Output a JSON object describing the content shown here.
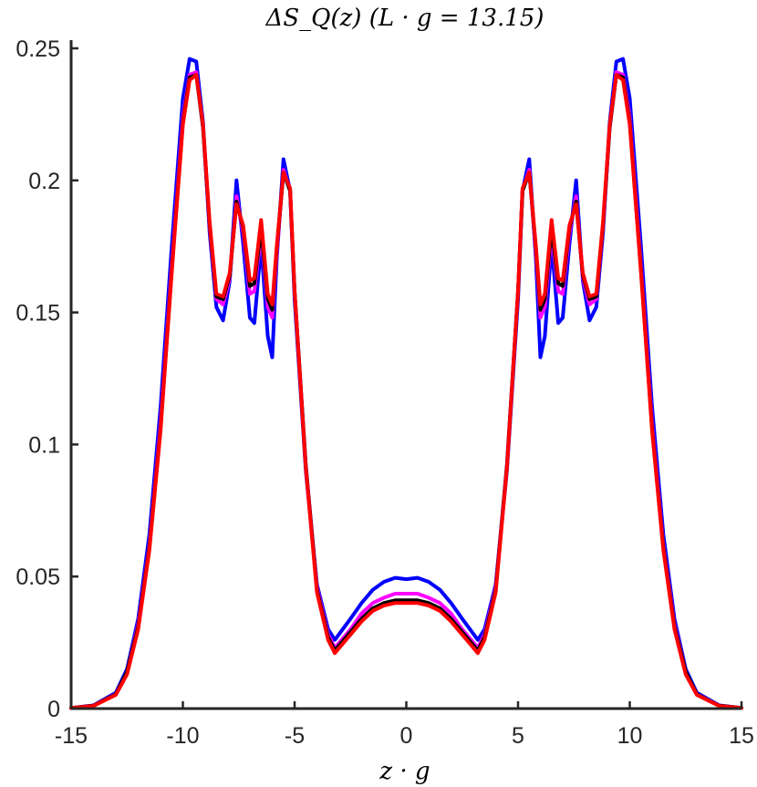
{
  "chart_data": {
    "type": "line",
    "title": "ΔS_Q(z) (L · g = 13.15)",
    "xlabel": "z · g",
    "ylabel": "",
    "xlim": [
      -15,
      15
    ],
    "ylim": [
      0,
      0.25
    ],
    "xticks": [
      -15,
      -10,
      -5,
      0,
      5,
      10,
      15
    ],
    "xtick_labels": [
      "-15",
      "-10",
      "-5",
      "0",
      "5",
      "10",
      "15"
    ],
    "yticks": [
      0,
      0.05,
      0.1,
      0.15,
      0.2,
      0.25
    ],
    "ytick_labels": [
      "0",
      "0.05",
      "0.1",
      "0.15",
      "0.2",
      "0.25"
    ],
    "grid": false,
    "legend": "none",
    "series": [
      {
        "color": "#0000ff",
        "x": [
          -15,
          -14,
          -13,
          -12.5,
          -12,
          -11.5,
          -11,
          -10.5,
          -10,
          -9.7,
          -9.4,
          -9.1,
          -8.8,
          -8.5,
          -8.2,
          -7.9,
          -7.6,
          -7.3,
          -7.0,
          -6.8,
          -6.5,
          -6.2,
          -6.0,
          -5.8,
          -5.5,
          -5.2,
          -5.0,
          -4.5,
          -4.0,
          -3.5,
          -3.2,
          -2.5,
          -2.0,
          -1.5,
          -1.0,
          -0.5,
          0,
          0.5,
          1.0,
          1.5,
          2.0,
          2.5,
          3.2,
          3.5,
          4.0,
          4.5,
          5.0,
          5.2,
          5.5,
          5.8,
          6.0,
          6.2,
          6.5,
          6.8,
          7.0,
          7.3,
          7.6,
          7.9,
          8.2,
          8.5,
          8.8,
          9.1,
          9.4,
          9.7,
          10,
          10.5,
          11,
          11.5,
          12,
          12.5,
          13,
          14,
          15
        ],
        "y": [
          0.0002,
          0.0012,
          0.006,
          0.015,
          0.034,
          0.066,
          0.114,
          0.175,
          0.231,
          0.246,
          0.245,
          0.222,
          0.18,
          0.152,
          0.147,
          0.162,
          0.2,
          0.176,
          0.148,
          0.146,
          0.176,
          0.141,
          0.133,
          0.17,
          0.208,
          0.196,
          0.155,
          0.09,
          0.047,
          0.03,
          0.026,
          0.034,
          0.04,
          0.045,
          0.048,
          0.0495,
          0.049,
          0.0495,
          0.048,
          0.045,
          0.04,
          0.034,
          0.026,
          0.03,
          0.047,
          0.09,
          0.155,
          0.196,
          0.208,
          0.17,
          0.133,
          0.141,
          0.176,
          0.146,
          0.148,
          0.176,
          0.2,
          0.162,
          0.147,
          0.152,
          0.18,
          0.222,
          0.245,
          0.246,
          0.231,
          0.175,
          0.114,
          0.066,
          0.034,
          0.015,
          0.006,
          0.0012,
          0.0002
        ]
      },
      {
        "color": "#ff00ff",
        "x": [
          -15,
          -14,
          -13,
          -12.5,
          -12,
          -11.5,
          -11,
          -10.5,
          -10,
          -9.7,
          -9.4,
          -9.1,
          -8.8,
          -8.5,
          -8.2,
          -7.9,
          -7.6,
          -7.3,
          -7.0,
          -6.8,
          -6.5,
          -6.2,
          -6.0,
          -5.8,
          -5.5,
          -5.2,
          -5.0,
          -4.5,
          -4.0,
          -3.5,
          -3.2,
          -2.5,
          -2.0,
          -1.5,
          -1.0,
          -0.5,
          0,
          0.5,
          1.0,
          1.5,
          2.0,
          2.5,
          3.2,
          3.5,
          4.0,
          4.5,
          5.0,
          5.2,
          5.5,
          5.8,
          6.0,
          6.2,
          6.5,
          6.8,
          7.0,
          7.3,
          7.6,
          7.9,
          8.2,
          8.5,
          8.8,
          9.1,
          9.4,
          9.7,
          10,
          10.5,
          11,
          11.5,
          12,
          12.5,
          13,
          14,
          15
        ],
        "y": [
          0.0002,
          0.0011,
          0.0055,
          0.014,
          0.032,
          0.062,
          0.108,
          0.168,
          0.224,
          0.24,
          0.241,
          0.22,
          0.182,
          0.155,
          0.153,
          0.163,
          0.194,
          0.18,
          0.157,
          0.158,
          0.18,
          0.152,
          0.148,
          0.172,
          0.204,
          0.196,
          0.158,
          0.092,
          0.046,
          0.028,
          0.023,
          0.03,
          0.036,
          0.04,
          0.042,
          0.0435,
          0.0435,
          0.0435,
          0.042,
          0.04,
          0.036,
          0.03,
          0.023,
          0.028,
          0.046,
          0.092,
          0.158,
          0.196,
          0.204,
          0.172,
          0.148,
          0.152,
          0.18,
          0.158,
          0.157,
          0.18,
          0.194,
          0.163,
          0.153,
          0.155,
          0.182,
          0.22,
          0.241,
          0.24,
          0.224,
          0.168,
          0.108,
          0.062,
          0.032,
          0.014,
          0.0055,
          0.0011,
          0.0002
        ]
      },
      {
        "color": "#000000",
        "x": [
          -15,
          -14,
          -13,
          -12.5,
          -12,
          -11.5,
          -11,
          -10.5,
          -10,
          -9.7,
          -9.4,
          -9.1,
          -8.8,
          -8.5,
          -8.2,
          -7.9,
          -7.6,
          -7.3,
          -7.0,
          -6.8,
          -6.5,
          -6.2,
          -6.0,
          -5.8,
          -5.5,
          -5.2,
          -5.0,
          -4.5,
          -4.0,
          -3.5,
          -3.2,
          -2.5,
          -2.0,
          -1.5,
          -1.0,
          -0.5,
          0,
          0.5,
          1.0,
          1.5,
          2.0,
          2.5,
          3.2,
          3.5,
          4.0,
          4.5,
          5.0,
          5.2,
          5.5,
          5.8,
          6.0,
          6.2,
          6.5,
          6.8,
          7.0,
          7.3,
          7.6,
          7.9,
          8.2,
          8.5,
          8.8,
          9.1,
          9.4,
          9.7,
          10,
          10.5,
          11,
          11.5,
          12,
          12.5,
          13,
          14,
          15
        ],
        "y": [
          0.0002,
          0.0011,
          0.0054,
          0.014,
          0.031,
          0.061,
          0.106,
          0.166,
          0.222,
          0.239,
          0.24,
          0.22,
          0.183,
          0.156,
          0.155,
          0.164,
          0.192,
          0.182,
          0.16,
          0.161,
          0.182,
          0.155,
          0.151,
          0.174,
          0.203,
          0.196,
          0.158,
          0.092,
          0.045,
          0.027,
          0.022,
          0.029,
          0.034,
          0.038,
          0.04,
          0.041,
          0.041,
          0.041,
          0.04,
          0.038,
          0.034,
          0.029,
          0.022,
          0.027,
          0.045,
          0.092,
          0.158,
          0.196,
          0.203,
          0.174,
          0.151,
          0.155,
          0.182,
          0.161,
          0.16,
          0.182,
          0.192,
          0.164,
          0.155,
          0.156,
          0.183,
          0.22,
          0.24,
          0.239,
          0.222,
          0.166,
          0.106,
          0.061,
          0.031,
          0.014,
          0.0054,
          0.0011,
          0.0002
        ]
      },
      {
        "color": "#ff0000",
        "x": [
          -15,
          -14,
          -13,
          -12.5,
          -12,
          -11.5,
          -11,
          -10.5,
          -10,
          -9.7,
          -9.4,
          -9.1,
          -8.8,
          -8.5,
          -8.2,
          -7.9,
          -7.6,
          -7.3,
          -7.0,
          -6.8,
          -6.5,
          -6.2,
          -6.0,
          -5.8,
          -5.5,
          -5.2,
          -5.0,
          -4.5,
          -4.0,
          -3.5,
          -3.2,
          -2.5,
          -2.0,
          -1.5,
          -1.0,
          -0.5,
          0,
          0.5,
          1.0,
          1.5,
          2.0,
          2.5,
          3.2,
          3.5,
          4.0,
          4.5,
          5.0,
          5.2,
          5.5,
          5.8,
          6.0,
          6.2,
          6.5,
          6.8,
          7.0,
          7.3,
          7.6,
          7.9,
          8.2,
          8.5,
          8.8,
          9.1,
          9.4,
          9.7,
          10,
          10.5,
          11,
          11.5,
          12,
          12.5,
          13,
          14,
          15
        ],
        "y": [
          0.0002,
          0.001,
          0.0052,
          0.013,
          0.03,
          0.06,
          0.105,
          0.165,
          0.221,
          0.238,
          0.24,
          0.221,
          0.184,
          0.157,
          0.156,
          0.165,
          0.191,
          0.183,
          0.162,
          0.163,
          0.185,
          0.157,
          0.153,
          0.175,
          0.203,
          0.197,
          0.158,
          0.091,
          0.044,
          0.026,
          0.021,
          0.028,
          0.033,
          0.037,
          0.039,
          0.04,
          0.04,
          0.04,
          0.039,
          0.037,
          0.033,
          0.028,
          0.021,
          0.026,
          0.044,
          0.091,
          0.158,
          0.197,
          0.203,
          0.175,
          0.153,
          0.157,
          0.185,
          0.163,
          0.162,
          0.183,
          0.191,
          0.165,
          0.156,
          0.157,
          0.184,
          0.221,
          0.24,
          0.238,
          0.221,
          0.165,
          0.105,
          0.06,
          0.03,
          0.013,
          0.0052,
          0.001,
          0.0002
        ]
      }
    ]
  }
}
